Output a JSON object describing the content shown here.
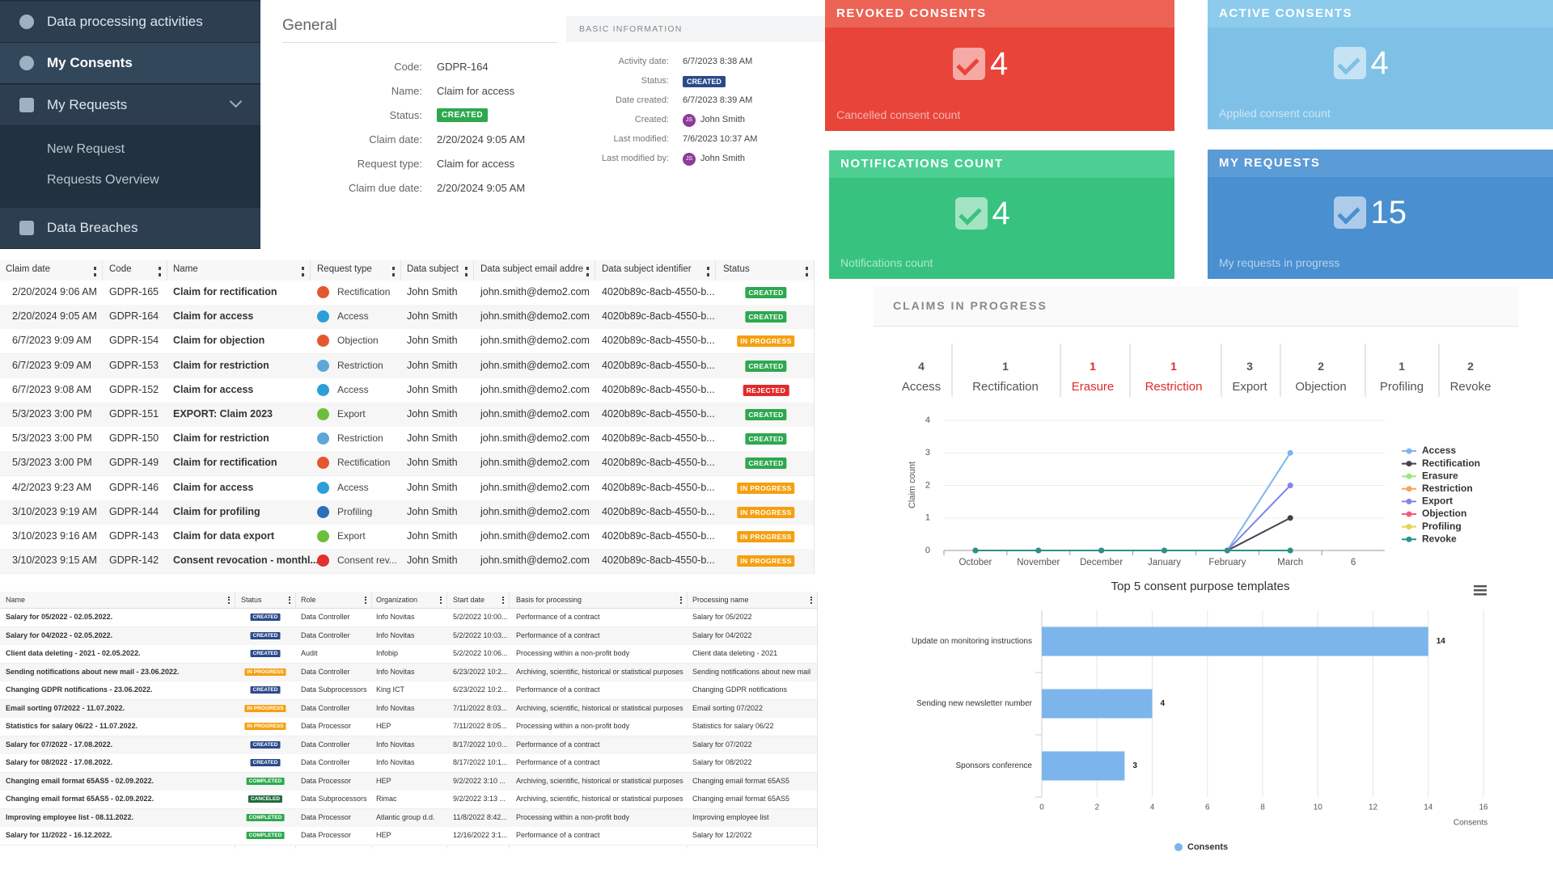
{
  "sidebar": {
    "items": [
      "Data processing activities",
      "My Consents",
      "My Requests",
      "Data Breaches"
    ],
    "submenu": [
      "New Request",
      "Requests Overview"
    ]
  },
  "general": {
    "title": "General",
    "fields": [
      {
        "label": "Code:",
        "value": "GDPR-164"
      },
      {
        "label": "Name:",
        "value": "Claim for access"
      },
      {
        "label": "Status:",
        "value": "CREATED",
        "badge": "#2ea84f"
      },
      {
        "label": "Claim date:",
        "value": "2/20/2024 9:05 AM"
      },
      {
        "label": "Request type:",
        "value": "Claim for access"
      },
      {
        "label": "Claim due date:",
        "value": "2/20/2024 9:05 AM"
      }
    ]
  },
  "basic_info": {
    "title": "BASIC INFORMATION",
    "fields": [
      {
        "label": "Activity date:",
        "value": "6/7/2023 8:38 AM"
      },
      {
        "label": "Status:",
        "value": "CREATED",
        "badge": "#2c4a8a"
      },
      {
        "label": "Date created:",
        "value": "6/7/2023 8:39 AM"
      },
      {
        "label": "Created:",
        "value": "John Smith",
        "avatar": "JS"
      },
      {
        "label": "Last modified:",
        "value": "7/6/2023 10:37 AM"
      },
      {
        "label": "Last modified by:",
        "value": "John Smith",
        "avatar": "JS"
      }
    ]
  },
  "cards": [
    {
      "title": "REVOKED CONSENTS",
      "value": 4,
      "subtitle": "Cancelled consent count",
      "color": "#e8443a",
      "header_color": "#ec6355"
    },
    {
      "title": "ACTIVE CONSENTS",
      "value": 4,
      "subtitle": "Applied consent count",
      "color": "#7fc1e6",
      "header_color": "#8ccbec"
    },
    {
      "title": "NOTIFICATIONS COUNT",
      "value": 4,
      "subtitle": "Notifications count",
      "color": "#37c37f",
      "header_color": "#4dcf94"
    },
    {
      "title": "MY REQUESTS",
      "value": 15,
      "subtitle": "My requests in progress",
      "color": "#4a8fd0",
      "header_color": "#5b9bd6"
    }
  ],
  "requests_table": {
    "columns": [
      "Claim date",
      "Code",
      "Name",
      "Request type",
      "Data subject",
      "Data subject email addre",
      "Data subject identifier",
      "Status"
    ],
    "status_colors": {
      "CREATED": "#2ea84f",
      "IN PROGRESS": "#f5a00f",
      "REJECTED": "#e12b2b"
    },
    "type_colors": {
      "Rectification": "#e4572e",
      "Access": "#2a9fd8",
      "Objection": "#e4572e",
      "Restriction": "#5ba8d8",
      "Export": "#6cbf3c",
      "Profiling": "#2a6fb8",
      "Consent rev...": "#e03030"
    },
    "rows": [
      [
        "2/20/2024 9:06 AM",
        "GDPR-165",
        "Claim for rectification",
        "Rectification",
        "John Smith",
        "john.smith@demo2.com",
        "4020b89c-8acb-4550-b...",
        "CREATED"
      ],
      [
        "2/20/2024 9:05 AM",
        "GDPR-164",
        "Claim for access",
        "Access",
        "John Smith",
        "john.smith@demo2.com",
        "4020b89c-8acb-4550-b...",
        "CREATED"
      ],
      [
        "6/7/2023 9:09 AM",
        "GDPR-154",
        "Claim for objection",
        "Objection",
        "John Smith",
        "john.smith@demo2.com",
        "4020b89c-8acb-4550-b...",
        "IN PROGRESS"
      ],
      [
        "6/7/2023 9:09 AM",
        "GDPR-153",
        "Claim for restriction",
        "Restriction",
        "John Smith",
        "john.smith@demo2.com",
        "4020b89c-8acb-4550-b...",
        "CREATED"
      ],
      [
        "6/7/2023 9:08 AM",
        "GDPR-152",
        "Claim for access",
        "Access",
        "John Smith",
        "john.smith@demo2.com",
        "4020b89c-8acb-4550-b...",
        "REJECTED"
      ],
      [
        "5/3/2023 3:00 PM",
        "GDPR-151",
        "EXPORT: Claim 2023",
        "Export",
        "John Smith",
        "john.smith@demo2.com",
        "4020b89c-8acb-4550-b...",
        "CREATED"
      ],
      [
        "5/3/2023 3:00 PM",
        "GDPR-150",
        "Claim for restriction",
        "Restriction",
        "John Smith",
        "john.smith@demo2.com",
        "4020b89c-8acb-4550-b...",
        "CREATED"
      ],
      [
        "5/3/2023 3:00 PM",
        "GDPR-149",
        "Claim for rectification",
        "Rectification",
        "John Smith",
        "john.smith@demo2.com",
        "4020b89c-8acb-4550-b...",
        "CREATED"
      ],
      [
        "4/2/2023 9:23 AM",
        "GDPR-146",
        "Claim for access",
        "Access",
        "John Smith",
        "john.smith@demo2.com",
        "4020b89c-8acb-4550-b...",
        "IN PROGRESS"
      ],
      [
        "3/10/2023 9:19 AM",
        "GDPR-144",
        "Claim for profiling",
        "Profiling",
        "John Smith",
        "john.smith@demo2.com",
        "4020b89c-8acb-4550-b...",
        "IN PROGRESS"
      ],
      [
        "3/10/2023 9:16 AM",
        "GDPR-143",
        "Claim for data export",
        "Export",
        "John Smith",
        "john.smith@demo2.com",
        "4020b89c-8acb-4550-b...",
        "IN PROGRESS"
      ],
      [
        "3/10/2023 9:15 AM",
        "GDPR-142",
        "Consent revocation - monthl...",
        "Consent rev...",
        "John Smith",
        "john.smith@demo2.com",
        "4020b89c-8acb-4550-b...",
        "IN PROGRESS"
      ]
    ]
  },
  "processing_table": {
    "columns": [
      "Name",
      "Status",
      "Role",
      "Organization",
      "Start date",
      "Basis for processing",
      "Processing name"
    ],
    "status_colors": {
      "CREATED": "#2c4a8a",
      "IN PROGRESS": "#f5a00f",
      "COMPLETED": "#2ea84f",
      "CANCELED": "#1f6b3a"
    },
    "rows": [
      [
        "Salary for 05/2022 - 02.05.2022.",
        "CREATED",
        "Data Controller",
        "Info Novitas",
        "5/2/2022 10:00...",
        "Performance of a contract",
        "Salary for 05/2022"
      ],
      [
        "Salary for 04/2022 - 02.05.2022.",
        "CREATED",
        "Data Controller",
        "Info Novitas",
        "5/2/2022 10:03...",
        "Performance of a contract",
        "Salary for 04/2022"
      ],
      [
        "Client data deleting - 2021 - 02.05.2022.",
        "CREATED",
        "Audit",
        "Infobip",
        "5/2/2022 10:06...",
        "Processing within a non-profit body",
        "Client data deleting - 2021"
      ],
      [
        "Sending notifications about new mail - 23.06.2022.",
        "IN PROGRESS",
        "Data Controller",
        "Info Novitas",
        "6/23/2022 10:2...",
        "Archiving, scientific, historical or statistical purposes",
        "Sending notifications about new mail"
      ],
      [
        "Changing GDPR notifications - 23.06.2022.",
        "CREATED",
        "Data Subprocessors",
        "King ICT",
        "6/23/2022 10:2...",
        "Performance of a contract",
        "Changing GDPR notifications"
      ],
      [
        "Email sorting 07/2022 - 11.07.2022.",
        "IN PROGRESS",
        "Data Controller",
        "Info Novitas",
        "7/11/2022 8:03...",
        "Archiving, scientific, historical or statistical purposes",
        "Email sorting 07/2022"
      ],
      [
        "Statistics for salary 06/22 - 11.07.2022.",
        "IN PROGRESS",
        "Data Processor",
        "HEP",
        "7/11/2022 8:05...",
        "Processing within a non-profit body",
        "Statistics for salary 06/22"
      ],
      [
        "Salary for 07/2022 - 17.08.2022.",
        "CREATED",
        "Data Controller",
        "Info Novitas",
        "8/17/2022 10:0...",
        "Performance of a contract",
        "Salary for 07/2022"
      ],
      [
        "Salary for 08/2022 - 17.08.2022.",
        "CREATED",
        "Data Controller",
        "Info Novitas",
        "8/17/2022 10:1...",
        "Performance of a contract",
        "Salary for 08/2022"
      ],
      [
        "Changing email format 65AS5 - 02.09.2022.",
        "COMPLETED",
        "Data Processor",
        "HEP",
        "9/2/2022 3:10 ...",
        "Archiving, scientific, historical or statistical purposes",
        "Changing email format 65AS5"
      ],
      [
        "Changing email format 65AS5 - 02.09.2022.",
        "CANCELED",
        "Data Subprocessors",
        "Rimac",
        "9/2/2022 3:13 ...",
        "Archiving, scientific, historical or statistical purposes",
        "Changing email format 65AS5"
      ],
      [
        "Improving employee list - 08.11.2022.",
        "COMPLETED",
        "Data Processor",
        "Atlantic group d.d.",
        "11/8/2022 8:42...",
        "Processing within a non-profit body",
        "Improving employee list"
      ],
      [
        "Salary for 11/2022 - 16.12.2022.",
        "COMPLETED",
        "Data Processor",
        "HEP",
        "12/16/2022 3:1...",
        "Performance of a contract",
        "Salary for 12/2022"
      ]
    ]
  },
  "claims": {
    "title": "CLAIMS IN PROGRESS",
    "counters": [
      {
        "count": 4,
        "label": "Access",
        "color": "#555555"
      },
      {
        "count": 1,
        "label": "Rectification",
        "color": "#555555"
      },
      {
        "count": 1,
        "label": "Erasure",
        "color": "#e02b2b"
      },
      {
        "count": 1,
        "label": "Restriction",
        "color": "#e02b2b"
      },
      {
        "count": 3,
        "label": "Export",
        "color": "#555555"
      },
      {
        "count": 2,
        "label": "Objection",
        "color": "#555555"
      },
      {
        "count": 1,
        "label": "Profiling",
        "color": "#555555"
      },
      {
        "count": 2,
        "label": "Revoke",
        "color": "#555555"
      }
    ]
  },
  "chart_data": [
    {
      "type": "line",
      "ylabel": "Claim count",
      "categories": [
        "October",
        "November",
        "December",
        "January",
        "February",
        "March",
        "6"
      ],
      "ylim": [
        0,
        4
      ],
      "yticks": [
        0,
        1,
        2,
        3,
        4
      ],
      "series": [
        {
          "name": "Access",
          "color": "#7cb5ec",
          "values": [
            0,
            0,
            0,
            0,
            0,
            3,
            null
          ]
        },
        {
          "name": "Rectification",
          "color": "#434348",
          "values": [
            0,
            0,
            0,
            0,
            0,
            1,
            null
          ]
        },
        {
          "name": "Erasure",
          "color": "#90ed7d",
          "values": [
            0,
            0,
            0,
            0,
            0,
            0,
            null
          ]
        },
        {
          "name": "Restriction",
          "color": "#f7a35c",
          "values": [
            0,
            0,
            0,
            0,
            0,
            0,
            null
          ]
        },
        {
          "name": "Export",
          "color": "#8085e9",
          "values": [
            0,
            0,
            0,
            0,
            0,
            2,
            null
          ]
        },
        {
          "name": "Objection",
          "color": "#f15c80",
          "values": [
            0,
            0,
            0,
            0,
            0,
            0,
            null
          ]
        },
        {
          "name": "Profiling",
          "color": "#e4d354",
          "values": [
            0,
            0,
            0,
            0,
            0,
            0,
            null
          ]
        },
        {
          "name": "Revoke",
          "color": "#2b908f",
          "values": [
            0,
            0,
            0,
            0,
            0,
            0,
            null
          ]
        }
      ]
    },
    {
      "type": "hbar",
      "title": "Top 5 consent purpose templates",
      "xlabel": "Consents",
      "categories": [
        "Update on monitoring instructions",
        "Sending new newsletter number",
        "Sponsors conference"
      ],
      "xlim": [
        0,
        16
      ],
      "xticks": [
        0,
        2,
        4,
        6,
        8,
        10,
        12,
        14,
        16
      ],
      "series": [
        {
          "name": "Consents",
          "color": "#7cb5ec",
          "values": [
            14,
            4,
            3
          ]
        }
      ]
    }
  ]
}
